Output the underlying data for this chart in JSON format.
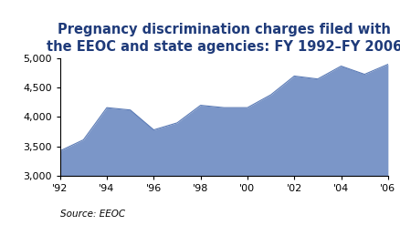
{
  "title": "Pregnancy discrimination charges filed with\nthe EEOC and state agencies: FY 1992–FY 2006",
  "source_text": "Source: EEOC",
  "years": [
    1992,
    1993,
    1994,
    1995,
    1996,
    1997,
    1998,
    1999,
    2000,
    2001,
    2002,
    2003,
    2004,
    2005,
    2006
  ],
  "values": [
    3420,
    3610,
    4160,
    4120,
    3780,
    3900,
    4200,
    4160,
    4160,
    4380,
    4700,
    4650,
    4870,
    4730,
    4901
  ],
  "fill_color": "#7b96c8",
  "line_color": "#5a7ab5",
  "title_color": "#1f3b7a",
  "background_color": "#ffffff",
  "ylim": [
    3000,
    5000
  ],
  "yticks": [
    3000,
    3500,
    4000,
    4500,
    5000
  ],
  "xtick_years": [
    1992,
    1994,
    1996,
    1998,
    2000,
    2002,
    2004,
    2006
  ],
  "xtick_labels": [
    "'92",
    "'94",
    "'96",
    "'98",
    "'00",
    "'02",
    "'04",
    "'06"
  ],
  "ylabel_fontsize": 8,
  "xlabel_fontsize": 8,
  "title_fontsize": 10.5,
  "source_fontsize": 7.5
}
